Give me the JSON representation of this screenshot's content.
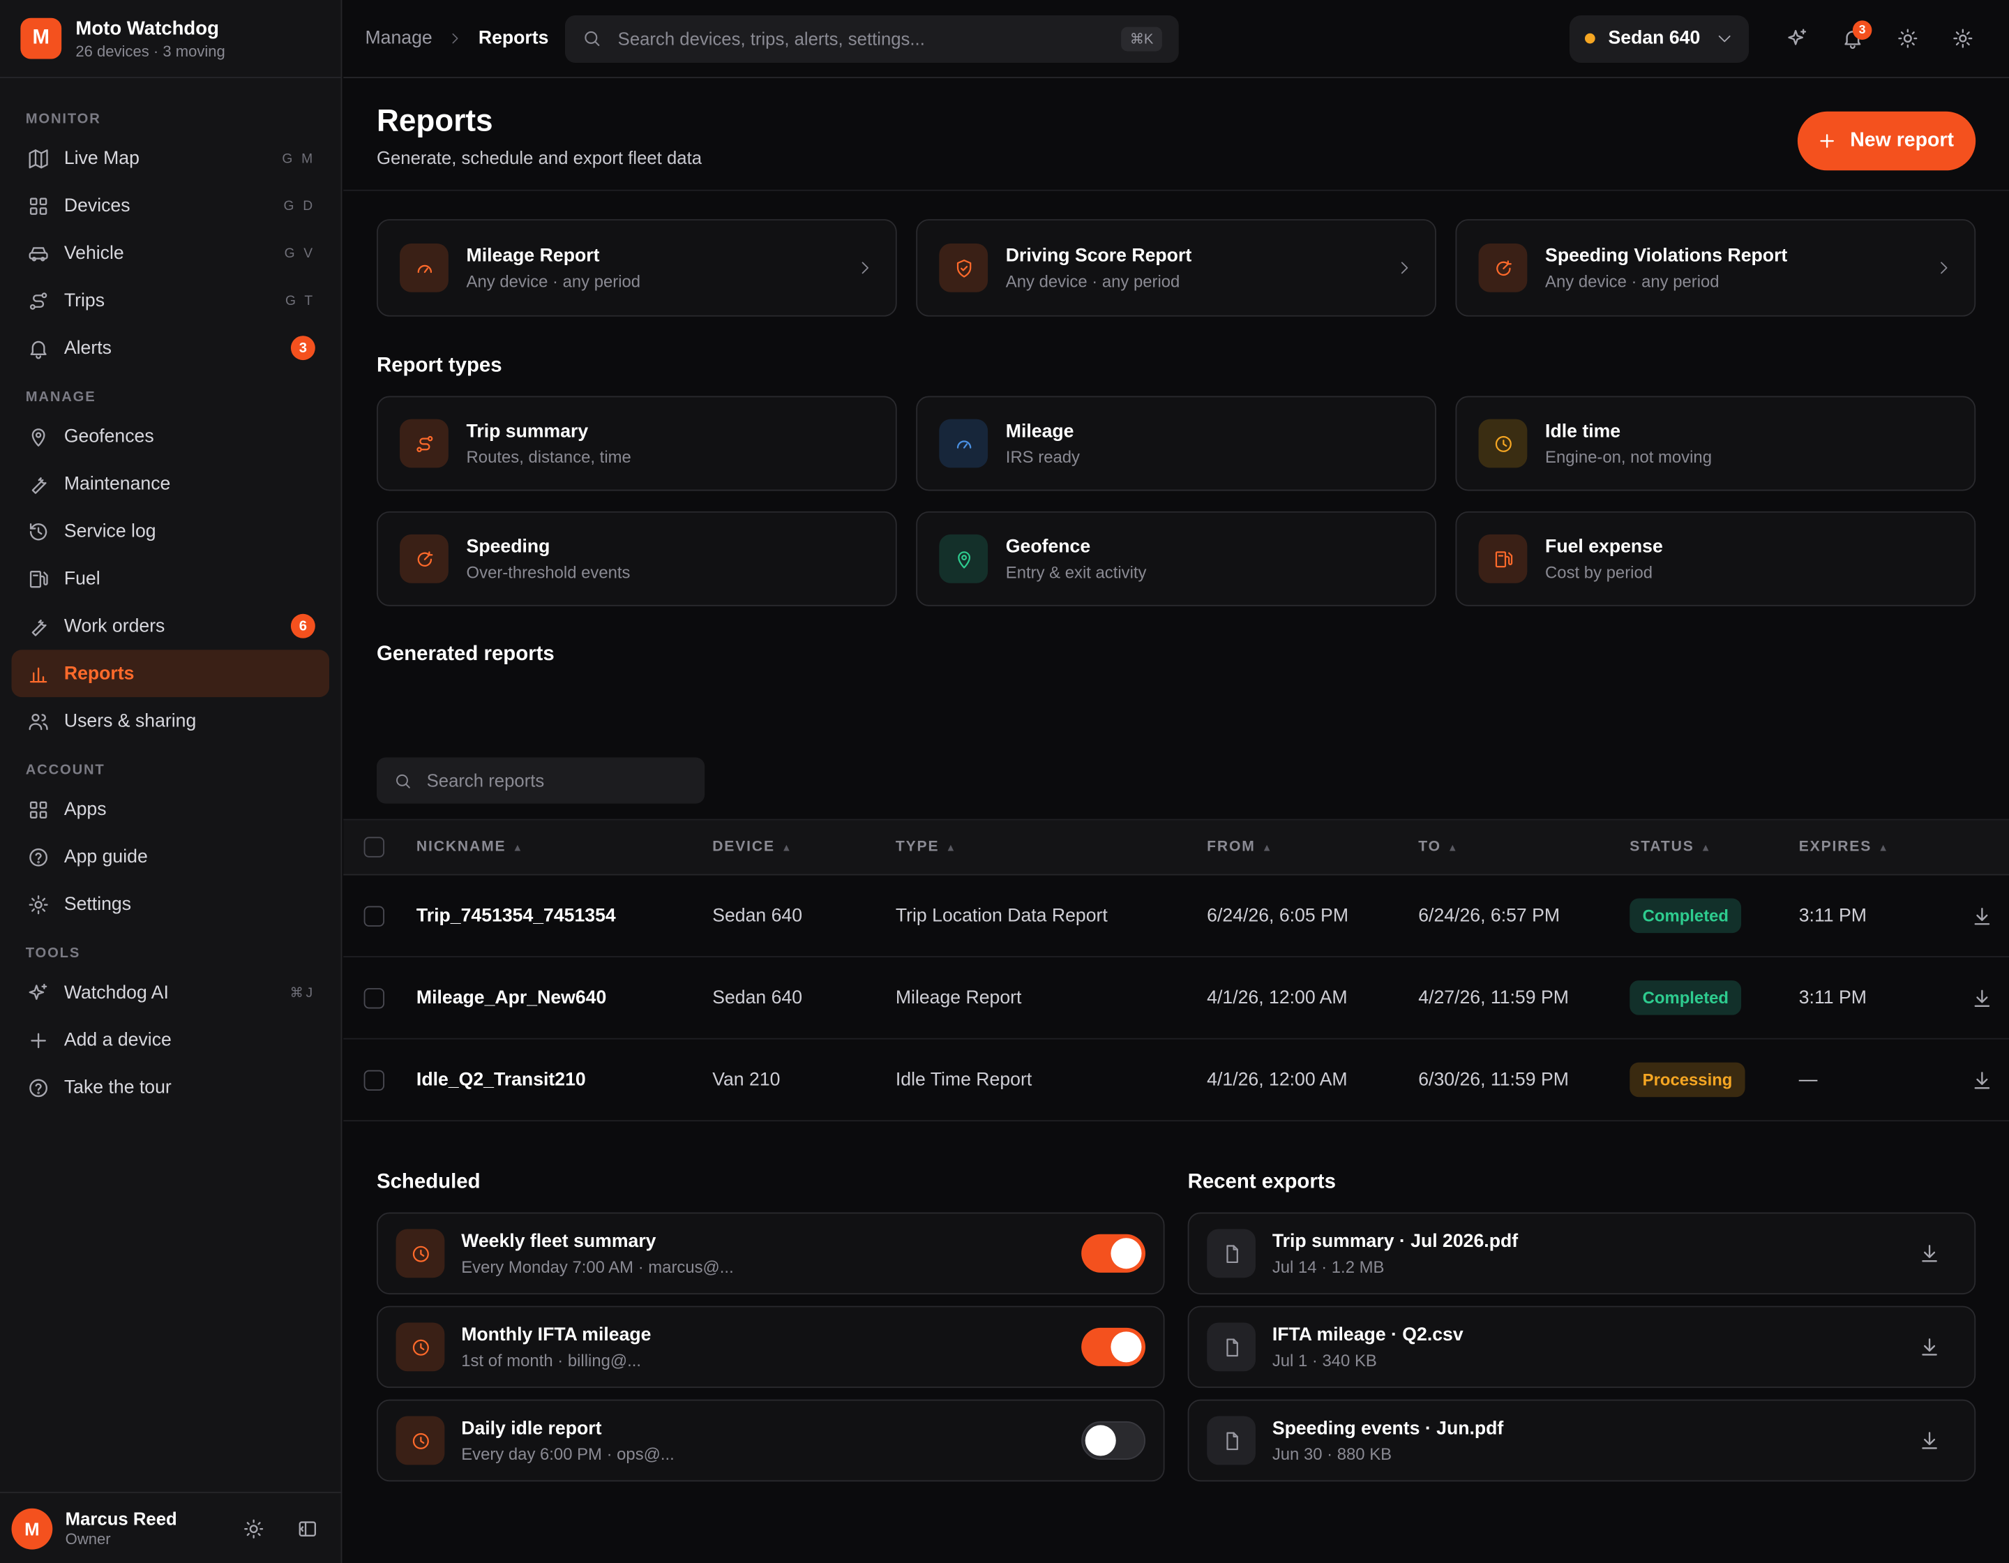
{
  "brand": {
    "initial": "M",
    "title": "Moto Watchdog",
    "subtitle": "26 devices · 3 moving"
  },
  "nav": {
    "sections": {
      "monitor": "MONITOR",
      "manage": "MANAGE",
      "account": "ACCOUNT",
      "tools": "TOOLS"
    },
    "monitor": [
      {
        "label": "Live Map",
        "shortcut": "G M",
        "icon": "map-icon"
      },
      {
        "label": "Devices",
        "shortcut": "G D",
        "icon": "grid-icon"
      },
      {
        "label": "Vehicle",
        "shortcut": "G V",
        "icon": "car-icon"
      },
      {
        "label": "Trips",
        "shortcut": "G T",
        "icon": "route-icon"
      },
      {
        "label": "Alerts",
        "badge": "3",
        "icon": "bell-icon"
      }
    ],
    "manage": [
      {
        "label": "Geofences",
        "icon": "pin-icon"
      },
      {
        "label": "Maintenance",
        "icon": "wrench-icon"
      },
      {
        "label": "Service log",
        "icon": "history-icon"
      },
      {
        "label": "Fuel",
        "icon": "fuel-icon"
      },
      {
        "label": "Work orders",
        "badge": "6",
        "icon": "wrench-icon"
      },
      {
        "label": "Reports",
        "icon": "bar-chart-icon",
        "active": true
      },
      {
        "label": "Users & sharing",
        "icon": "users-icon"
      }
    ],
    "account": [
      {
        "label": "Apps",
        "icon": "grid-icon"
      },
      {
        "label": "App guide",
        "icon": "help-icon"
      },
      {
        "label": "Settings",
        "icon": "gear-icon"
      }
    ],
    "tools": [
      {
        "label": "Watchdog AI",
        "shortcut": "⌘J",
        "icon": "sparkle-icon"
      },
      {
        "label": "Add a device",
        "icon": "plus-icon"
      },
      {
        "label": "Take the tour",
        "icon": "help-icon"
      }
    ]
  },
  "user": {
    "initial": "M",
    "name": "Marcus Reed",
    "role": "Owner"
  },
  "topbar": {
    "breadcrumb": [
      "Manage",
      "Reports"
    ],
    "search_placeholder": "Search devices, trips, alerts, settings...",
    "search_shortcut": "⌘K",
    "device": "Sedan 640",
    "notifications": "3"
  },
  "page": {
    "title": "Reports",
    "subtitle": "Generate, schedule and export fleet data",
    "new_button": "New report"
  },
  "quick_reports": [
    {
      "title": "Mileage Report",
      "sub": "Any device · any period"
    },
    {
      "title": "Driving Score Report",
      "sub": "Any device · any period"
    },
    {
      "title": "Speeding Violations Report",
      "sub": "Any device · any period"
    }
  ],
  "report_types_title": "Report types",
  "report_types": [
    {
      "title": "Trip summary",
      "sub": "Routes, distance, time"
    },
    {
      "title": "Mileage",
      "sub": "IRS ready"
    },
    {
      "title": "Idle time",
      "sub": "Engine-on, not moving"
    },
    {
      "title": "Speeding",
      "sub": "Over-threshold events"
    },
    {
      "title": "Geofence",
      "sub": "Entry & exit activity"
    },
    {
      "title": "Fuel expense",
      "sub": "Cost by period"
    }
  ],
  "generated_title": "Generated reports",
  "search_reports_placeholder": "Search reports",
  "table": {
    "columns": [
      "NICKNAME",
      "DEVICE",
      "TYPE",
      "FROM",
      "TO",
      "STATUS",
      "EXPIRES"
    ],
    "rows": [
      {
        "nickname": "Trip_7451354_7451354",
        "device": "Sedan 640",
        "type": "Trip Location Data Report",
        "from": "6/24/26, 6:05 PM",
        "to": "6/24/26, 6:57 PM",
        "status": "Completed",
        "expires": "3:11 PM"
      },
      {
        "nickname": "Mileage_Apr_New640",
        "device": "Sedan 640",
        "type": "Mileage Report",
        "from": "4/1/26, 12:00 AM",
        "to": "4/27/26, 11:59 PM",
        "status": "Completed",
        "expires": "3:11 PM"
      },
      {
        "nickname": "Idle_Q2_Transit210",
        "device": "Van 210",
        "type": "Idle Time Report",
        "from": "4/1/26, 12:00 AM",
        "to": "6/30/26, 11:59 PM",
        "status": "Processing",
        "expires": "—"
      }
    ]
  },
  "scheduled_title": "Scheduled",
  "scheduled": [
    {
      "title": "Weekly fleet summary",
      "sub": "Every Monday 7:00 AM · marcus@...",
      "enabled": true
    },
    {
      "title": "Monthly IFTA mileage",
      "sub": "1st of month · billing@...",
      "enabled": true
    },
    {
      "title": "Daily idle report",
      "sub": "Every day 6:00 PM · ops@...",
      "enabled": false
    }
  ],
  "exports_title": "Recent exports",
  "exports": [
    {
      "title": "Trip summary · Jul 2026.pdf",
      "sub": "Jul 14 · 1.2 MB"
    },
    {
      "title": "IFTA mileage · Q2.csv",
      "sub": "Jul 1 · 340 KB"
    },
    {
      "title": "Speeding events · Jun.pdf",
      "sub": "Jun 30 · 880 KB"
    }
  ],
  "colors": {
    "accent": "#f4511e",
    "completed": "#2ecc8f",
    "processing": "#f5a623"
  }
}
